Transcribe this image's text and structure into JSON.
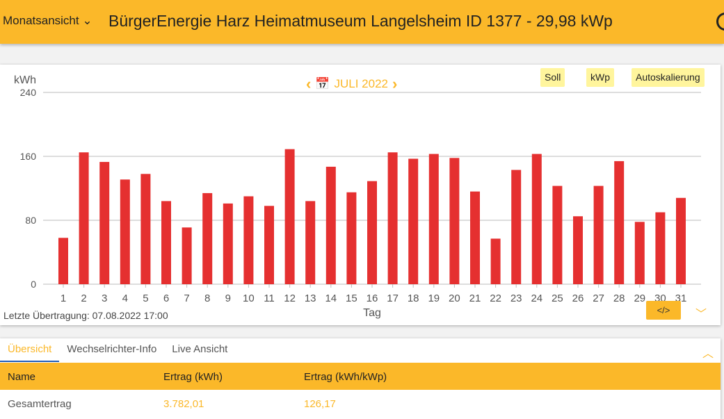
{
  "header": {
    "view_select": "Monatsansicht",
    "title": "BürgerEnergie Harz Heimatmuseum Langelsheim ID 1377 - 29,98 kWp"
  },
  "toolbar": {
    "soll": "Soll",
    "kwp": "kWp",
    "autoscale": "Autoskalierung",
    "period": "JULI 2022"
  },
  "status": {
    "last_transfer": "Letzte Übertragung: 07.08.2022 17:00"
  },
  "chart_data": {
    "type": "bar",
    "ylabel": "kWh",
    "xlabel": "Tag",
    "ylim": [
      0,
      240
    ],
    "yticks": [
      0,
      80,
      160,
      240
    ],
    "grid": true,
    "bar_color": "#e53030",
    "categories": [
      "1",
      "2",
      "3",
      "4",
      "5",
      "6",
      "7",
      "8",
      "9",
      "10",
      "11",
      "12",
      "13",
      "14",
      "15",
      "16",
      "17",
      "18",
      "19",
      "20",
      "21",
      "22",
      "23",
      "24",
      "25",
      "26",
      "27",
      "28",
      "29",
      "30",
      "31"
    ],
    "values": [
      58,
      165,
      153,
      131,
      138,
      104,
      71,
      114,
      101,
      110,
      98,
      169,
      104,
      147,
      115,
      129,
      165,
      157,
      163,
      158,
      116,
      57,
      143,
      163,
      123,
      85,
      123,
      154,
      78,
      90,
      108
    ]
  },
  "tabs": [
    {
      "label": "Übersicht",
      "active": true
    },
    {
      "label": "Wechselrichter-Info"
    },
    {
      "label": "Live Ansicht"
    }
  ],
  "table": {
    "headers": [
      "Name",
      "Ertrag (kWh)",
      "Ertrag (kWh/kWp)"
    ],
    "rows": [
      [
        "Gesamtertrag",
        "3.782,01",
        "126,17"
      ]
    ]
  },
  "colors": {
    "accent": "#fbb829",
    "bar": "#e53030"
  }
}
